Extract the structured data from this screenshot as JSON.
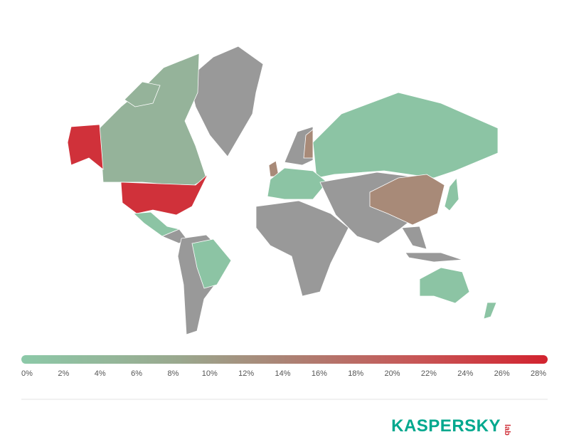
{
  "legend": {
    "labels": [
      "0%",
      "2%",
      "4%",
      "6%",
      "8%",
      "10%",
      "12%",
      "14%",
      "16%",
      "18%",
      "20%",
      "22%",
      "24%",
      "26%",
      "28%"
    ]
  },
  "logo": {
    "brand": "KASPERSKY",
    "suffix": "lab"
  }
}
